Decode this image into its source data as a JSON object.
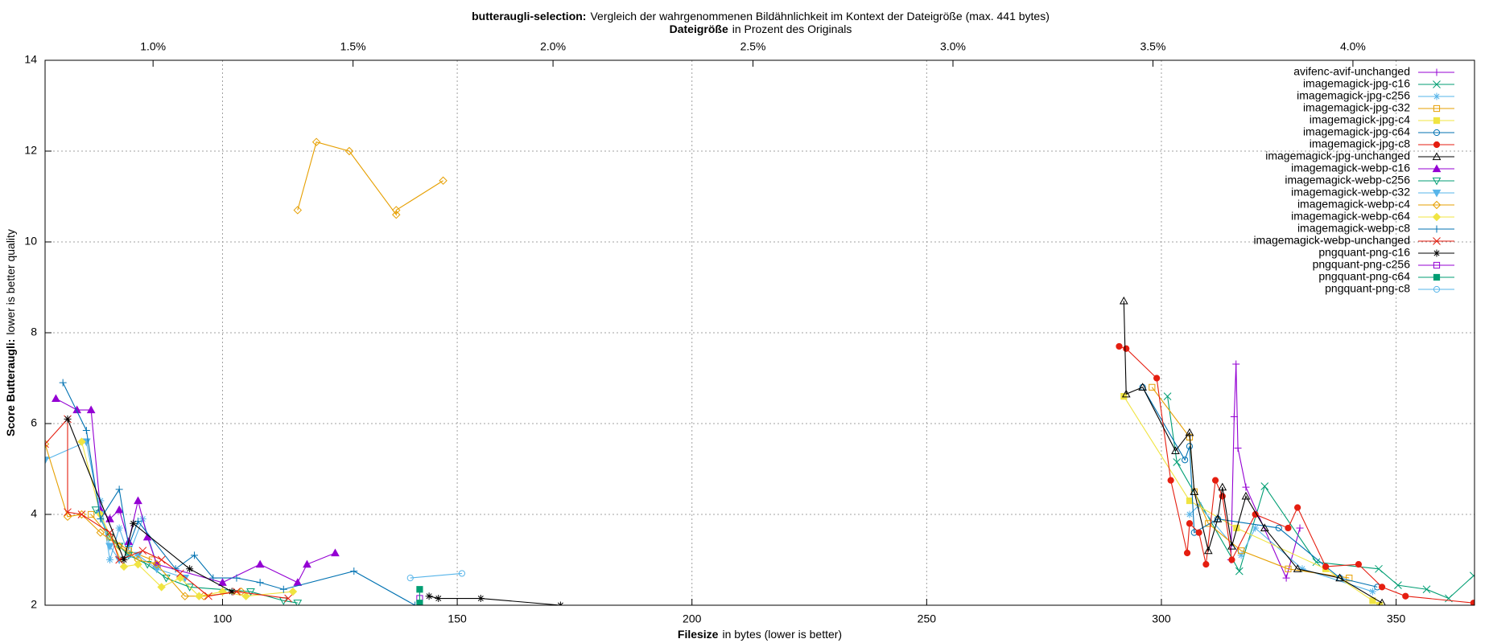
{
  "chart_data": {
    "type": "line",
    "title": {
      "bold": "butteraugli-selection:",
      "text": "Vergleich der wahrgenommenen Bildähnlichkeit im Kontext der Dateigröße (max. 441 bytes)"
    },
    "x2label": {
      "bold": "Dateigröße",
      "text": "in Prozent des Originals"
    },
    "xlabel": {
      "bold": "Filesize",
      "text": "in bytes (lower is better)"
    },
    "ylabel": {
      "bold": "Score Butteraugli:",
      "text": "lower is better quality"
    },
    "xlim": [
      62.2,
      366.7
    ],
    "xticks": [
      100,
      150,
      200,
      250,
      300,
      350
    ],
    "x2lim": [
      0.73,
      4.304
    ],
    "x2ticks": [
      {
        "value": 1.0,
        "label": "1.0%"
      },
      {
        "value": 1.5,
        "label": "1.5%"
      },
      {
        "value": 2.0,
        "label": "2.0%"
      },
      {
        "value": 2.5,
        "label": "2.5%"
      },
      {
        "value": 3.0,
        "label": "3.0%"
      },
      {
        "value": 3.5,
        "label": "3.5%"
      },
      {
        "value": 4.0,
        "label": "4.0%"
      }
    ],
    "ylim": [
      2,
      14
    ],
    "yticks": [
      2,
      4,
      6,
      8,
      10,
      12,
      14
    ],
    "grid": true,
    "legend": "top right",
    "series": [
      {
        "name": "avifenc-avif-unchanged",
        "color": "#9400d3",
        "marker": "plus",
        "x": [
          314.8,
          315.5,
          315.9,
          316.3,
          318.0,
          326.6,
          329.5
        ],
        "values": [
          3.0,
          6.15,
          7.31,
          5.46,
          4.6,
          2.6,
          3.7
        ]
      },
      {
        "name": "imagemagick-jpg-c16",
        "color": "#009e73",
        "marker": "cross",
        "x": [
          301.3,
          303.3,
          316.6,
          322.0,
          333.0,
          346.3,
          350.4,
          356.5,
          361.2,
          366.5
        ],
        "values": [
          6.6,
          5.15,
          2.75,
          4.62,
          2.95,
          2.8,
          2.44,
          2.35,
          2.15,
          2.65
        ]
      },
      {
        "name": "imagemagick-jpg-c256",
        "color": "#56b4e9",
        "marker": "star",
        "x": [
          74,
          76,
          78,
          80,
          83,
          86,
          null,
          306,
          308,
          317,
          320,
          330,
          345
        ],
        "values": [
          4.3,
          3.0,
          3.7,
          3.1,
          3.9,
          2.9,
          null,
          4.0,
          4.2,
          3.1,
          3.7,
          2.8,
          2.3
        ]
      },
      {
        "name": "imagemagick-jpg-c32",
        "color": "#e69f00",
        "marker": "square",
        "x": [
          72,
          76,
          80,
          85,
          null,
          298,
          306,
          307,
          310,
          317,
          327,
          340
        ],
        "values": [
          4.0,
          3.5,
          3.2,
          3.0,
          null,
          6.8,
          5.7,
          4.5,
          3.8,
          3.2,
          2.8,
          2.6
        ]
      },
      {
        "name": "imagemagick-jpg-c4",
        "color": "#f0e442",
        "marker": "square-filled",
        "x": [
          292,
          306,
          316,
          335,
          345,
          346.5
        ],
        "values": [
          6.6,
          4.3,
          3.7,
          2.8,
          2.1,
          2.0
        ]
      },
      {
        "name": "imagemagick-jpg-c64",
        "color": "#0072b2",
        "marker": "circle",
        "x": [
          296,
          305,
          306,
          307,
          312,
          325,
          338,
          346
        ],
        "values": [
          6.8,
          5.2,
          5.5,
          3.6,
          3.9,
          3.7,
          2.6,
          2.4
        ]
      },
      {
        "name": "imagemagick-jpg-c8",
        "color": "#e51e10",
        "marker": "circle-filled",
        "x": [
          291,
          292.5,
          299,
          302,
          305.5,
          306,
          308,
          309.5,
          311.5,
          313,
          315,
          320,
          327,
          329,
          335,
          342,
          347,
          352,
          366.5
        ],
        "values": [
          7.7,
          7.65,
          7.0,
          4.75,
          3.15,
          3.8,
          3.6,
          2.9,
          4.75,
          4.4,
          3.0,
          4.0,
          3.7,
          4.15,
          2.85,
          2.9,
          2.4,
          2.2,
          2.05
        ]
      },
      {
        "name": "imagemagick-jpg-unchanged",
        "color": "#000000",
        "marker": "triangle",
        "x": [
          292,
          292.5,
          296,
          303,
          306,
          307,
          310,
          312,
          313,
          315,
          318,
          322,
          329,
          338,
          347
        ],
        "values": [
          8.7,
          6.65,
          6.8,
          5.4,
          5.8,
          4.5,
          3.2,
          3.9,
          4.6,
          3.3,
          4.4,
          3.7,
          2.8,
          2.6,
          2.05
        ]
      },
      {
        "name": "imagemagick-webp-c16",
        "color": "#9400d3",
        "marker": "triangle-filled",
        "x": [
          64.5,
          69,
          72,
          74,
          76,
          78,
          80,
          82,
          84,
          86,
          100,
          108,
          116,
          118,
          124
        ],
        "values": [
          6.55,
          6.3,
          6.3,
          4.1,
          3.9,
          4.1,
          3.4,
          4.3,
          3.5,
          2.9,
          2.5,
          2.9,
          2.5,
          2.9,
          3.15
        ]
      },
      {
        "name": "imagemagick-webp-c256",
        "color": "#009e73",
        "marker": "triangle-down",
        "x": [
          73,
          76,
          78,
          80,
          84,
          88,
          93,
          106,
          113,
          116
        ],
        "values": [
          4.1,
          3.5,
          3.3,
          3.1,
          2.9,
          2.6,
          2.4,
          2.3,
          2.1,
          2.05
        ]
      },
      {
        "name": "imagemagick-webp-c32",
        "color": "#56b4e9",
        "marker": "triangle-down-filled",
        "x": [
          62.2,
          71,
          74,
          76,
          78,
          82,
          86,
          92
        ],
        "values": [
          5.2,
          5.6,
          4.0,
          3.3,
          3.0,
          3.1,
          2.8,
          2.6
        ]
      },
      {
        "name": "imagemagick-webp-c4",
        "color": "#e69f00",
        "marker": "diamond",
        "x": [
          62.2,
          67,
          70,
          74,
          78,
          82,
          86,
          92,
          96,
          104,
          null,
          116,
          120,
          127,
          137,
          137,
          147
        ],
        "values": [
          5.55,
          3.95,
          4.0,
          3.6,
          3.3,
          3.0,
          2.9,
          2.2,
          2.2,
          2.3,
          null,
          10.7,
          12.2,
          12.0,
          10.6,
          10.7,
          11.35
        ]
      },
      {
        "name": "imagemagick-webp-c64",
        "color": "#f0e442",
        "marker": "diamond-filled",
        "x": [
          70,
          74,
          79,
          82,
          87,
          91,
          95,
          100,
          105,
          115
        ],
        "values": [
          5.6,
          4.0,
          2.85,
          2.9,
          2.4,
          2.6,
          2.2,
          2.3,
          2.2,
          2.3
        ]
      },
      {
        "name": "imagemagick-webp-c8",
        "color": "#0072b2",
        "marker": "plus",
        "x": [
          66,
          71,
          74,
          78,
          80,
          82,
          90,
          94,
          98,
          103,
          108,
          113,
          128,
          141
        ],
        "values": [
          6.9,
          5.85,
          3.9,
          4.55,
          3.3,
          3.85,
          2.8,
          3.1,
          2.6,
          2.6,
          2.5,
          2.35,
          2.75,
          2.0
        ]
      },
      {
        "name": "imagemagick-webp-unchanged",
        "color": "#e51e10",
        "marker": "cross",
        "x": [
          62.2,
          67,
          67,
          70,
          76,
          78,
          83,
          87,
          91,
          97,
          103,
          114
        ],
        "values": [
          5.55,
          6.1,
          4.05,
          4.0,
          3.6,
          3.0,
          3.2,
          3.0,
          2.7,
          2.2,
          2.3,
          2.15
        ]
      },
      {
        "name": "pngquant-png-c16",
        "color": "#000000",
        "marker": "star",
        "x": [
          67,
          79,
          81,
          93,
          102,
          null,
          144,
          146,
          155,
          172
        ],
        "values": [
          6.1,
          3.0,
          3.8,
          2.8,
          2.3,
          null,
          2.2,
          2.15,
          2.15,
          2.0
        ]
      },
      {
        "name": "pngquant-png-c256",
        "color": "#9400d3",
        "marker": "square",
        "x": [
          142
        ],
        "values": [
          2.15
        ]
      },
      {
        "name": "pngquant-png-c64",
        "color": "#009e73",
        "marker": "square-filled",
        "x": [
          142,
          142
        ],
        "values": [
          2.35,
          2.05
        ]
      },
      {
        "name": "pngquant-png-c8",
        "color": "#56b4e9",
        "marker": "circle",
        "x": [
          140,
          151
        ],
        "values": [
          2.6,
          2.7
        ]
      }
    ]
  }
}
